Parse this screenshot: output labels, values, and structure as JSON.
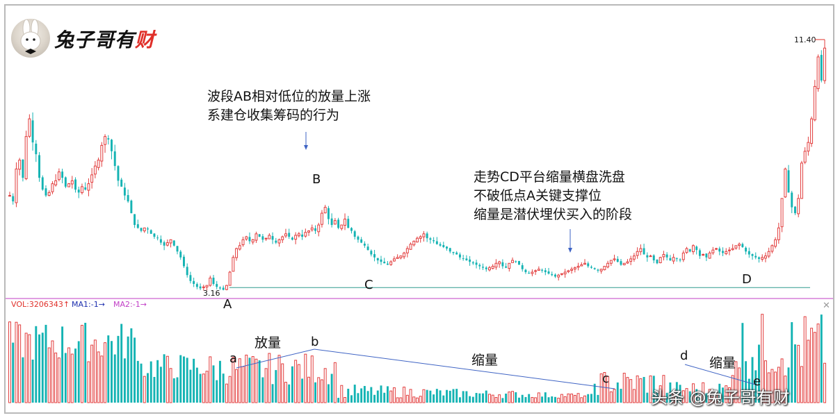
{
  "brand": {
    "name_black": "兔子哥有",
    "name_red": "财",
    "avatar_icon": "rabbit-avatar-icon"
  },
  "watermark": "头条 @兔子哥有财",
  "notes": {
    "ab_line1": "波段AB相对低位的放量上涨",
    "ab_line2": "系建仓收集筹码的行为",
    "cd_line1": "走势CD平台缩量横盘洗盘",
    "cd_line2": "不破低点A关键支撑位",
    "cd_line3": "缩量是潜伏埋伏买入的阶段"
  },
  "price_labels": {
    "high": "11.40",
    "low": "3.16"
  },
  "vol_legend": {
    "vol": "VOL:3206343↑",
    "ma1": "MA1:-1→",
    "ma2": "MA2:-1→"
  },
  "colors": {
    "up": "#e23c3c",
    "down": "#14b3b3",
    "ma1": "#1d2fae",
    "ma2": "#c13dc6",
    "trend": "#3e63c4",
    "support": "#2e9a8e",
    "divider": "#c13dc6"
  },
  "chart_data": [
    {
      "type": "candlestick",
      "title": "",
      "point_labels": [
        {
          "label": "A",
          "x": 66,
          "price": 3.16
        },
        {
          "label": "B",
          "x": 96,
          "price": 6.0
        },
        {
          "label": "C",
          "x": 118,
          "price": 4.05
        },
        {
          "label": "D",
          "x": 234,
          "price": 4.25
        }
      ],
      "support_level": 3.16,
      "max_price": 11.4,
      "close_series": [
        6.4,
        6.2,
        7.3,
        7.6,
        7.0,
        8.4,
        9.0,
        8.2,
        7.8,
        7.0,
        6.6,
        6.4,
        6.5,
        6.8,
        6.9,
        7.2,
        7.0,
        6.7,
        6.8,
        6.9,
        6.6,
        6.5,
        6.7,
        6.6,
        6.8,
        7.1,
        7.4,
        7.6,
        8.1,
        8.4,
        8.3,
        7.9,
        7.4,
        6.9,
        6.7,
        6.4,
        6.2,
        5.8,
        5.4,
        5.3,
        5.2,
        5.3,
        5.25,
        5.1,
        5.0,
        4.95,
        4.8,
        4.7,
        4.8,
        4.9,
        4.7,
        4.5,
        4.3,
        4.0,
        3.7,
        3.5,
        3.4,
        3.3,
        3.25,
        3.3,
        3.35,
        3.6,
        3.4,
        3.3,
        3.25,
        3.2,
        3.35,
        3.8,
        4.3,
        4.6,
        4.7,
        4.9,
        5.0,
        4.85,
        4.9,
        5.1,
        5.0,
        4.9,
        4.95,
        5.05,
        4.9,
        4.8,
        4.9,
        5.0,
        5.1,
        5.0,
        4.9,
        5.05,
        5.1,
        5.0,
        5.15,
        5.2,
        5.3,
        5.2,
        5.4,
        5.8,
        6.0,
        5.6,
        5.4,
        5.55,
        5.3,
        5.4,
        5.6,
        5.3,
        5.2,
        5.0,
        4.9,
        4.8,
        4.7,
        4.55,
        4.4,
        4.3,
        4.2,
        4.15,
        4.1,
        4.05,
        4.15,
        4.25,
        4.3,
        4.35,
        4.45,
        4.6,
        4.75,
        4.85,
        4.95,
        5.0,
        5.1,
        4.95,
        4.9,
        4.85,
        4.75,
        4.7,
        4.65,
        4.6,
        4.5,
        4.45,
        4.4,
        4.3,
        4.25,
        4.2,
        4.15,
        4.1,
        4.05,
        4.0,
        3.95,
        3.9,
        3.95,
        4.0,
        4.1,
        4.15,
        4.0,
        3.95,
        4.1,
        4.2,
        4.15,
        4.05,
        3.9,
        3.8,
        3.75,
        3.8,
        3.85,
        3.9,
        3.85,
        3.8,
        3.75,
        3.7,
        3.65,
        3.7,
        3.75,
        3.8,
        3.85,
        3.9,
        3.95,
        4.0,
        4.05,
        4.1,
        4.0,
        3.95,
        3.9,
        3.85,
        3.9,
        4.0,
        4.1,
        4.2,
        4.25,
        4.15,
        4.05,
        4.1,
        4.15,
        4.25,
        4.35,
        4.5,
        4.6,
        4.4,
        4.3,
        4.35,
        4.2,
        4.1,
        4.3,
        4.4,
        4.3,
        4.2,
        4.3,
        4.25,
        4.2,
        4.45,
        4.6,
        4.5,
        4.7,
        4.55,
        4.35,
        4.4,
        4.3,
        4.45,
        4.55,
        4.6,
        4.5,
        4.45,
        4.5,
        4.55,
        4.6,
        4.7,
        4.75,
        4.65,
        4.5,
        4.4,
        4.35,
        4.3,
        4.25,
        4.3,
        4.35,
        4.5,
        4.7,
        4.9,
        5.3,
        6.3,
        7.3,
        6.5,
        6.0,
        5.8,
        6.3,
        7.5,
        7.9,
        8.2,
        9.0,
        10.1,
        11.1,
        10.3,
        11.4
      ]
    },
    {
      "type": "bar",
      "title": "",
      "series_name": "VOL",
      "point_labels": [
        {
          "label": "a",
          "x": 66
        },
        {
          "label": "b",
          "x": 90
        },
        {
          "label": "c",
          "x": 178
        },
        {
          "label": "d",
          "x": 196
        },
        {
          "label": "e",
          "x": 215
        }
      ],
      "annotations": [
        "放量",
        "缩量",
        "缩量"
      ]
    }
  ]
}
